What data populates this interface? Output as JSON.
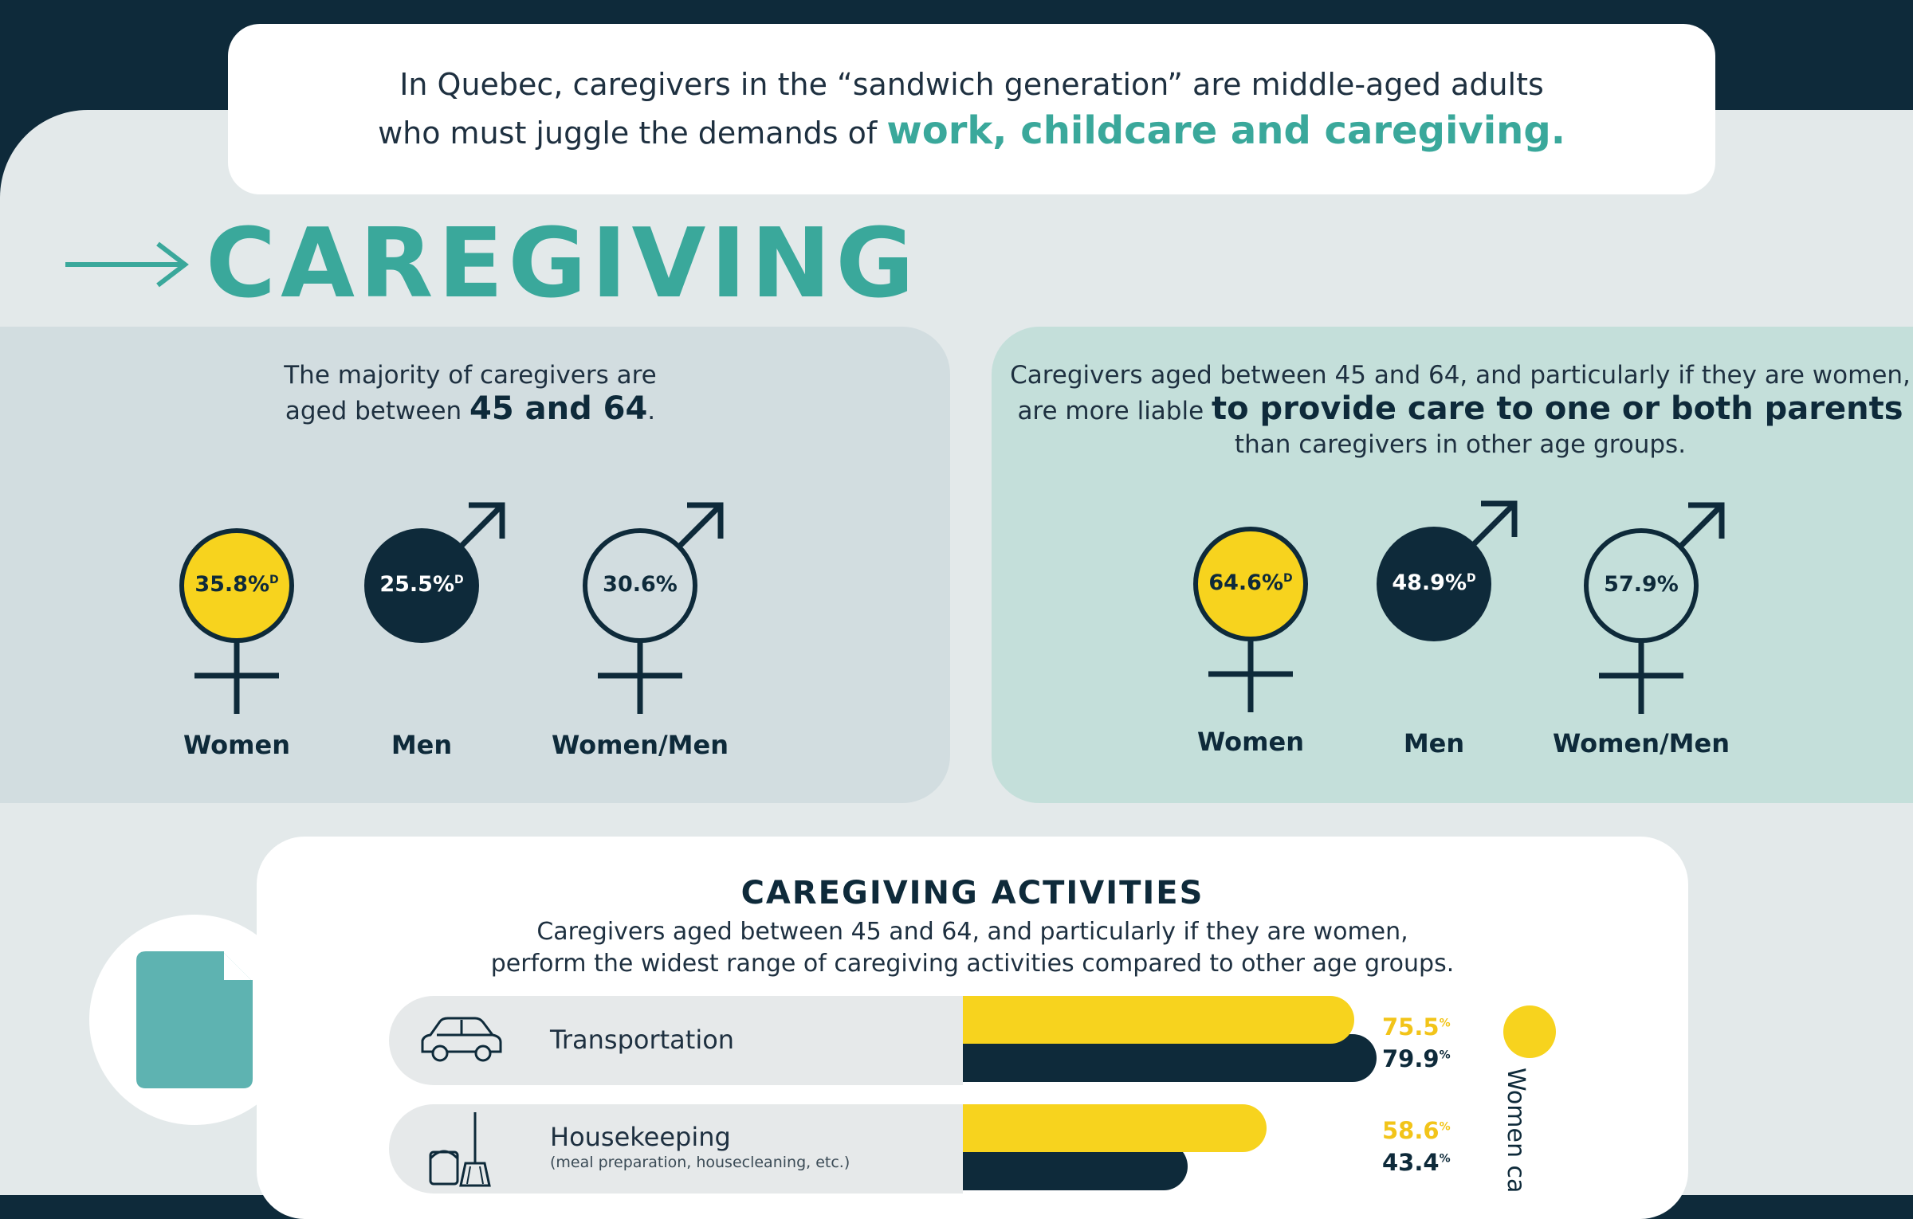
{
  "intro": {
    "line1": "In Quebec, caregivers in the “sandwich generation” are middle-aged adults",
    "line2_prefix": "who must juggle the demands of ",
    "line2_highlight": "work, childcare and caregiving."
  },
  "section": {
    "arrow_icon": "right-arrow-icon",
    "title": "CAREGIVING"
  },
  "age_card": {
    "caption_line1": "The majority of caregivers are",
    "caption_prefix": "aged between ",
    "caption_highlight": "45 and 64",
    "caption_suffix": ".",
    "stats": [
      {
        "label": "Women",
        "value": "35.8%",
        "marker": "D",
        "symbol": "female-symbol-icon"
      },
      {
        "label": "Men",
        "value": "25.5%",
        "marker": "D",
        "symbol": "male-symbol-icon"
      },
      {
        "label": "Women/Men",
        "value": "30.6%",
        "marker": "",
        "symbol": "female-male-symbol-icon"
      }
    ]
  },
  "parents_card": {
    "caption_line1": "Caregivers aged between 45 and 64, and particularly if they are women,",
    "caption_prefix": "are more liable ",
    "caption_highlight": "to provide care to one or both parents",
    "caption_line3": "than caregivers in other age groups.",
    "stats": [
      {
        "label": "Women",
        "value": "64.6%",
        "marker": "D",
        "symbol": "female-symbol-icon"
      },
      {
        "label": "Men",
        "value": "48.9%",
        "marker": "D",
        "symbol": "male-symbol-icon"
      },
      {
        "label": "Women/Men",
        "value": "57.9%",
        "marker": "",
        "symbol": "female-male-symbol-icon"
      }
    ]
  },
  "activities": {
    "title": "CAREGIVING ACTIVITIES",
    "subtitle_line1": "Caregivers aged between 45 and 64, and particularly if they are women,",
    "subtitle_line2": "perform the widest range of caregiving activities compared to other age groups.",
    "rows": [
      {
        "label": "Transportation",
        "note": "",
        "icon": "car-icon",
        "women": "75.5",
        "men": "79.9",
        "marker": "%"
      },
      {
        "label": "Housekeeping",
        "note": "(meal preparation, housecleaning, etc.)",
        "icon": "bucket-broom-icon",
        "women": "58.6",
        "men": "43.4",
        "marker": "%"
      }
    ],
    "legend_label": "Women ca"
  },
  "colors": {
    "navy": "#0e2a3a",
    "teal": "#3aa89b",
    "yellow": "#f7d31e",
    "document_icon": "#5eb3b1"
  },
  "badge": {
    "icon": "document-icon"
  }
}
